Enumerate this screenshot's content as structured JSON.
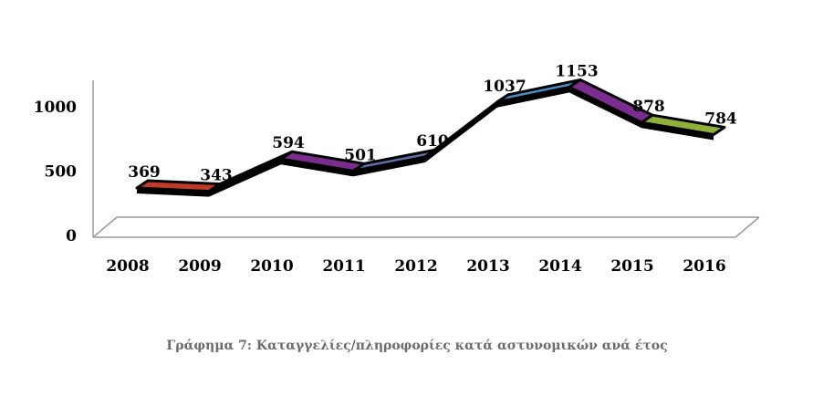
{
  "chart_data": {
    "type": "line",
    "style": "3d-ribbon",
    "categories": [
      "2008",
      "2009",
      "2010",
      "2011",
      "2012",
      "2013",
      "2014",
      "2015",
      "2016"
    ],
    "values": [
      369,
      343,
      594,
      501,
      610,
      1037,
      1153,
      878,
      784
    ],
    "data_labels": [
      "369",
      "343",
      "594",
      "501",
      "610",
      "1037",
      "1153",
      "878",
      "784"
    ],
    "segment_colors": [
      "#c0392b",
      "#8e1f1f",
      "#7b2d8e",
      "#5c6fa8",
      "#e08a2e",
      "#4a90c8",
      "#7b2d8e",
      "#8fb03a"
    ],
    "y_ticks": [
      "0",
      "500",
      "1000"
    ],
    "y_tick_values": [
      0,
      500,
      1000
    ],
    "ylim": [
      0,
      1250
    ],
    "grid": false,
    "legend": "none"
  },
  "caption": "Γράφημα 7: Καταγγελίες/πληροφορίες κατά αστυνομικών ανά έτος"
}
